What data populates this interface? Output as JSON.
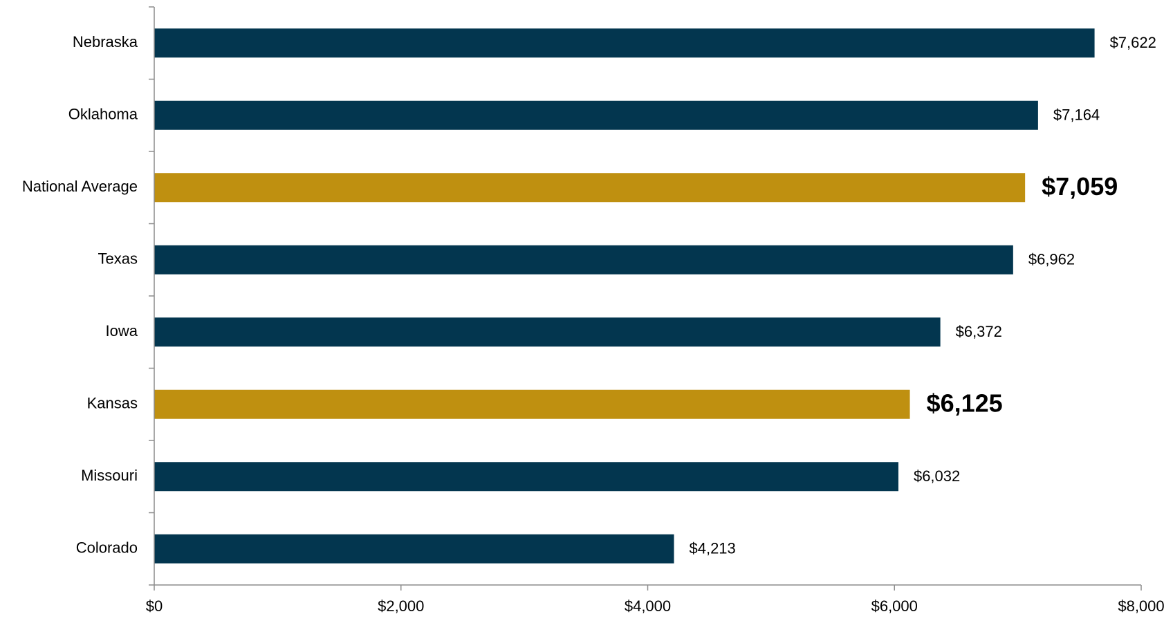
{
  "chart_data": {
    "type": "bar",
    "orientation": "horizontal",
    "title": "",
    "xlabel": "",
    "ylabel": "",
    "xlim": [
      0,
      8000
    ],
    "x_ticks": [
      0,
      2000,
      4000,
      6000,
      8000
    ],
    "x_tick_labels": [
      "$0",
      "$2,000",
      "$4,000",
      "$6,000",
      "$8,000"
    ],
    "grid": false,
    "legend": "none",
    "categories": [
      "Nebraska",
      "Oklahoma",
      "National Average",
      "Texas",
      "Iowa",
      "Kansas",
      "Missouri",
      "Colorado"
    ],
    "values": [
      7622,
      7164,
      7059,
      6962,
      6372,
      6125,
      6032,
      4213
    ],
    "value_labels": [
      "$7,622",
      "$7,164",
      "$7,059",
      "$6,962",
      "$6,372",
      "$6,125",
      "$6,032",
      "$4,213"
    ],
    "highlighted": [
      "National Average",
      "Kansas"
    ],
    "colors": {
      "default": "#03364f",
      "highlight": "#bf9010",
      "axis": "#8c8c8c",
      "text": "#000000"
    }
  }
}
